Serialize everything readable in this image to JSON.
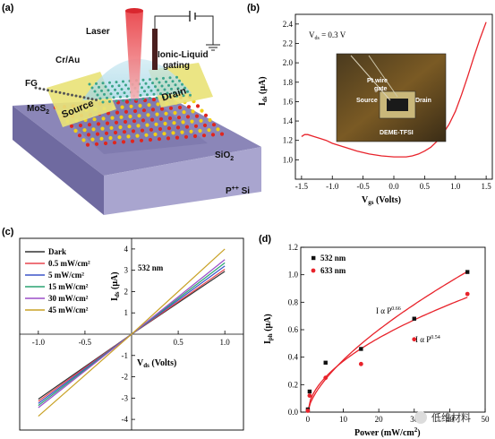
{
  "panels": {
    "a": {
      "label": "(a)",
      "labels": {
        "laser": "Laser",
        "cr_au": "Cr/Au",
        "ionic_liquid": "Ionic-Liquid",
        "gating": "gating",
        "fg": "FG",
        "source": "Source",
        "drain": "Drain",
        "mos2_base": "MoS",
        "mos2_sub": "2",
        "sio2_base": "SiO",
        "sio2_sub": "2",
        "psi": "P",
        "psi_sup": "++",
        "psi_tail": " Si"
      }
    },
    "b": {
      "label": "(b)",
      "annotation": "V",
      "annotation_sub": "ds",
      "annotation_tail": " = 0.3 V",
      "photo_labels": {
        "pt_wire": "Pt wire",
        "gate": "gate",
        "source": "Source",
        "drain": "Drain",
        "device": "DEME-TFSI"
      }
    },
    "c": {
      "label": "(c)",
      "annotation": "532 nm"
    },
    "d": {
      "label": "(d)",
      "fit_532": "I α  P",
      "fit_532_exp": "0.66",
      "fit_633": "I α  P",
      "fit_633_exp": "0.54"
    }
  },
  "watermark": "低维材料",
  "chart_data": [
    {
      "id": "b",
      "type": "line",
      "x_label": "V",
      "x_label_sub": "gs",
      "x_label_tail": " (Volts)",
      "y_label": "I",
      "y_label_sub": "ds",
      "y_label_tail": " (μA)",
      "xlim": [
        -1.6,
        1.6
      ],
      "ylim": [
        0.8,
        2.5
      ],
      "x_ticks": [
        "-1.5",
        "-1.0",
        "-0.5",
        "0.0",
        "0.5",
        "1.0",
        "1.5"
      ],
      "x_tick_values": [
        -1.5,
        -1.0,
        -0.5,
        0.0,
        0.5,
        1.0,
        1.5
      ],
      "y_ticks": [
        "1.0",
        "1.2",
        "1.4",
        "1.6",
        "1.8",
        "2.0",
        "2.2",
        "2.4"
      ],
      "y_tick_values": [
        1.0,
        1.2,
        1.4,
        1.6,
        1.8,
        2.0,
        2.2,
        2.4
      ],
      "color": "#e8232b",
      "x": [
        -1.5,
        -1.45,
        -1.4,
        -1.3,
        -1.2,
        -1.1,
        -1.0,
        -0.8,
        -0.6,
        -0.4,
        -0.2,
        0.0,
        0.2,
        0.3,
        0.4,
        0.5,
        0.6,
        0.7,
        0.8,
        0.9,
        1.0,
        1.1,
        1.2,
        1.3,
        1.4,
        1.5
      ],
      "y": [
        1.24,
        1.26,
        1.26,
        1.24,
        1.22,
        1.2,
        1.17,
        1.13,
        1.09,
        1.06,
        1.04,
        1.03,
        1.03,
        1.04,
        1.06,
        1.09,
        1.13,
        1.19,
        1.27,
        1.37,
        1.5,
        1.67,
        1.86,
        2.06,
        2.25,
        2.42
      ]
    },
    {
      "id": "c",
      "type": "line",
      "x_label": "V",
      "x_label_sub": "ds",
      "x_label_tail": " (Volts)",
      "y_label": "I",
      "y_label_sub": "ds",
      "y_label_tail": " (μA)",
      "xlim": [
        -1.2,
        1.2
      ],
      "ylim": [
        -4.5,
        4.5
      ],
      "x_ticks": [
        "-1.0",
        "-0.5",
        "0.5",
        "1.0"
      ],
      "x_tick_values": [
        -1.0,
        -0.5,
        0.5,
        1.0
      ],
      "y_ticks": [
        "4",
        "3",
        "2",
        "1",
        "0",
        "-1",
        "-2",
        "-3",
        "-4"
      ],
      "y_tick_values": [
        4,
        3,
        2,
        1,
        0,
        -1,
        -2,
        -3,
        -4
      ],
      "series": [
        {
          "name": "Dark",
          "color": "#333333",
          "v_neg1": -3.05,
          "v_pos1": 2.95
        },
        {
          "name": "0.5 mW/cm²",
          "color": "#e8454f",
          "v_neg1": -3.15,
          "v_pos1": 3.05
        },
        {
          "name": "5 mW/cm²",
          "color": "#3b55c8",
          "v_neg1": -3.25,
          "v_pos1": 3.2
        },
        {
          "name": "15 mW/cm²",
          "color": "#2aa372",
          "v_neg1": -3.35,
          "v_pos1": 3.35
        },
        {
          "name": "30 mW/cm²",
          "color": "#9b4fc8",
          "v_neg1": -3.45,
          "v_pos1": 3.5
        },
        {
          "name": "45 mW/cm²",
          "color": "#c9a227",
          "v_neg1": -3.85,
          "v_pos1": 4.0
        }
      ]
    },
    {
      "id": "d",
      "type": "scatter",
      "x_label": "Power (mW/cm",
      "x_label_sup": "2",
      "x_label_tail": ")",
      "y_label": "I",
      "y_label_sub": "ph",
      "y_label_tail": " (μA)",
      "xlim": [
        -2,
        50
      ],
      "ylim": [
        0,
        1.2
      ],
      "x_ticks": [
        "0",
        "10",
        "20",
        "30",
        "40",
        "50"
      ],
      "x_tick_values": [
        0,
        10,
        20,
        30,
        40,
        50
      ],
      "y_ticks": [
        "0.0",
        "0.2",
        "0.4",
        "0.6",
        "0.8",
        "1.0",
        "1.2"
      ],
      "y_tick_values": [
        0.0,
        0.2,
        0.4,
        0.6,
        0.8,
        1.0,
        1.2
      ],
      "series": [
        {
          "name": "532 nm",
          "color": "#111111",
          "fit_color": "#e8232b",
          "x": [
            0,
            0.5,
            5,
            15,
            30,
            45
          ],
          "y": [
            0.02,
            0.15,
            0.36,
            0.46,
            0.68,
            1.02
          ],
          "fit_exp": 0.66,
          "fit_coef": 0.083
        },
        {
          "name": "633 nm",
          "color": "#e8232b",
          "fit_color": "#e8232b",
          "x": [
            0,
            0.5,
            5,
            15,
            30,
            45
          ],
          "y": [
            0.01,
            0.12,
            0.25,
            0.35,
            0.53,
            0.86
          ],
          "fit_exp": 0.54,
          "fit_coef": 0.107
        }
      ]
    }
  ]
}
